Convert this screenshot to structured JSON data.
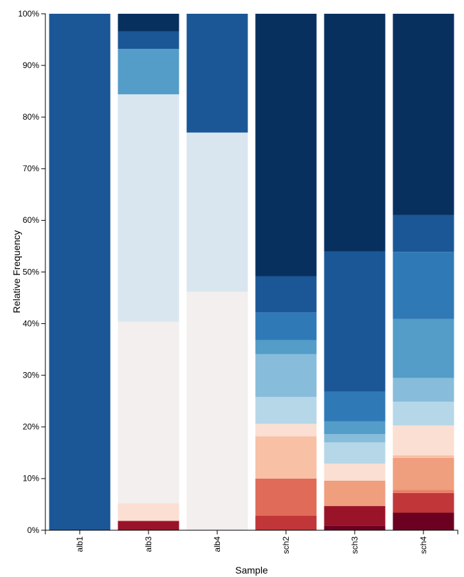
{
  "chart_data": {
    "type": "bar",
    "stacked": true,
    "normalized": true,
    "title": "",
    "xlabel": "Sample",
    "ylabel": "Relative Frequency",
    "ylim": [
      0,
      100
    ],
    "y_ticks": [
      "0%",
      "10%",
      "20%",
      "30%",
      "40%",
      "50%",
      "60%",
      "70%",
      "80%",
      "90%",
      "100%"
    ],
    "categories": [
      "alb1",
      "alb3",
      "alb4",
      "sch2",
      "sch3",
      "sch4"
    ],
    "grid": false,
    "legend": "none",
    "stacks": [
      {
        "sample": "alb1",
        "segments": [
          {
            "value": 100.0,
            "color": "#1b5796"
          }
        ]
      },
      {
        "sample": "alb3",
        "segments": [
          {
            "value": 1.8,
            "color": "#9a1429"
          },
          {
            "value": 3.4,
            "color": "#fbdfd2"
          },
          {
            "value": 35.2,
            "color": "#f2efee"
          },
          {
            "value": 44.0,
            "color": "#d9e6f0"
          },
          {
            "value": 8.8,
            "color": "#539dc8"
          },
          {
            "value": 3.4,
            "color": "#1b5796"
          },
          {
            "value": 3.4,
            "color": "#08305f"
          }
        ]
      },
      {
        "sample": "alb4",
        "segments": [
          {
            "value": 46.2,
            "color": "#f2efee"
          },
          {
            "value": 30.8,
            "color": "#d9e6f0"
          },
          {
            "value": 23.0,
            "color": "#1b5796"
          }
        ]
      },
      {
        "sample": "sch2",
        "segments": [
          {
            "value": 2.8,
            "color": "#c13639"
          },
          {
            "value": 7.2,
            "color": "#df6b58"
          },
          {
            "value": 8.2,
            "color": "#f8c0a4"
          },
          {
            "value": 2.4,
            "color": "#fbdfd2"
          },
          {
            "value": 5.2,
            "color": "#b6d7e8"
          },
          {
            "value": 8.3,
            "color": "#88bcdb"
          },
          {
            "value": 2.7,
            "color": "#539dc8"
          },
          {
            "value": 5.4,
            "color": "#3079b7"
          },
          {
            "value": 7.0,
            "color": "#1b5796"
          },
          {
            "value": 50.8,
            "color": "#08305f"
          }
        ]
      },
      {
        "sample": "sch3",
        "segments": [
          {
            "value": 0.9,
            "color": "#6b0020"
          },
          {
            "value": 3.8,
            "color": "#9a1429"
          },
          {
            "value": 4.9,
            "color": "#ef9e7e"
          },
          {
            "value": 3.3,
            "color": "#fbdfd2"
          },
          {
            "value": 4.1,
            "color": "#b6d7e8"
          },
          {
            "value": 1.6,
            "color": "#88bcdb"
          },
          {
            "value": 2.5,
            "color": "#539dc8"
          },
          {
            "value": 5.7,
            "color": "#3079b7"
          },
          {
            "value": 27.2,
            "color": "#1b5796"
          },
          {
            "value": 46.0,
            "color": "#08305f"
          }
        ]
      },
      {
        "sample": "sch4",
        "segments": [
          {
            "value": 3.4,
            "color": "#6b0020"
          },
          {
            "value": 3.8,
            "color": "#c13639"
          },
          {
            "value": 0.6,
            "color": "#e77f68"
          },
          {
            "value": 6.2,
            "color": "#ef9e7e"
          },
          {
            "value": 0.5,
            "color": "#f8c0a4"
          },
          {
            "value": 5.8,
            "color": "#fbdfd2"
          },
          {
            "value": 4.6,
            "color": "#b6d7e8"
          },
          {
            "value": 4.6,
            "color": "#88bcdb"
          },
          {
            "value": 11.4,
            "color": "#539dc8"
          },
          {
            "value": 13.0,
            "color": "#3079b7"
          },
          {
            "value": 7.1,
            "color": "#1b5796"
          },
          {
            "value": 39.0,
            "color": "#08305f"
          }
        ]
      }
    ]
  }
}
